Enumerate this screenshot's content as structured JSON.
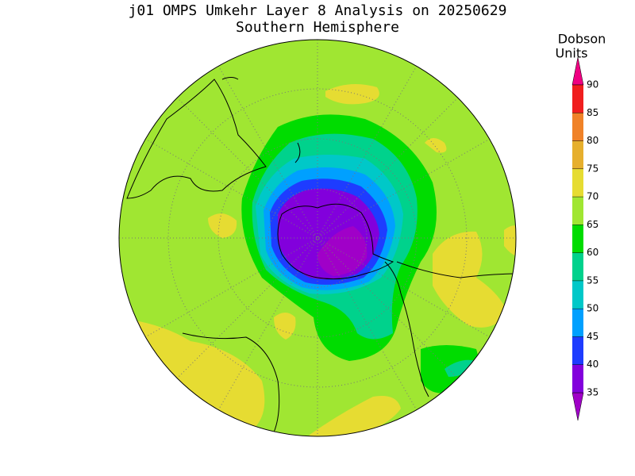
{
  "header": {
    "title": "j01 OMPS Umkehr Layer 8 Analysis on 20250629",
    "subtitle": "Southern Hemisphere"
  },
  "colorbar": {
    "label": [
      "Dobson",
      "Units"
    ],
    "levels": [
      35,
      40,
      45,
      50,
      55,
      60,
      65,
      70,
      75,
      80,
      85,
      90
    ],
    "colors": [
      "#a000c8",
      "#8200dc",
      "#1e3cff",
      "#00a0ff",
      "#00c8c8",
      "#00d28c",
      "#00dc00",
      "#a0e632",
      "#e6dc32",
      "#e6af2d",
      "#f08228",
      "#f01e1e",
      "#f00082"
    ]
  }
}
